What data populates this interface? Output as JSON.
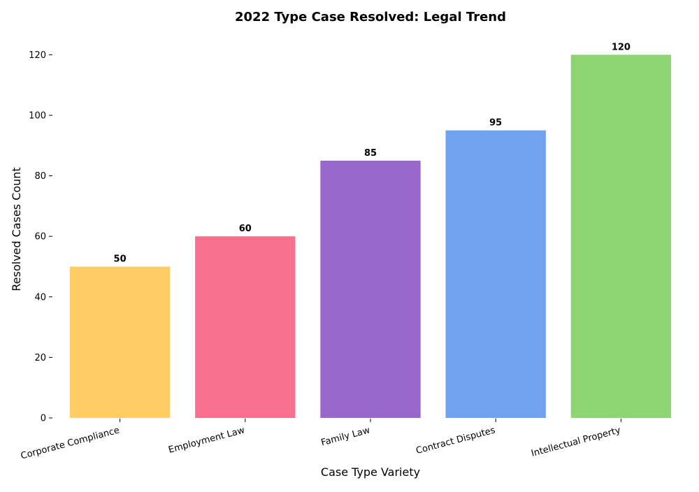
{
  "chart_data": {
    "type": "bar",
    "title": "2022 Type Case Resolved: Legal Trend",
    "xlabel": "Case Type Variety",
    "ylabel": "Resolved Cases Count",
    "categories": [
      "Corporate Compliance",
      "Employment Law",
      "Family Law",
      "Contract Disputes",
      "Intellectual Property"
    ],
    "values": [
      50,
      60,
      85,
      95,
      120
    ],
    "data_labels": [
      "50",
      "60",
      "85",
      "95",
      "120"
    ],
    "colors": [
      "#FFCC66",
      "#F7708E",
      "#9966CC",
      "#70A2EF",
      "#8ED473"
    ],
    "yticks": [
      0,
      20,
      40,
      60,
      80,
      100,
      120
    ],
    "ylim": [
      0,
      127
    ],
    "grid": false,
    "legend": "none"
  }
}
